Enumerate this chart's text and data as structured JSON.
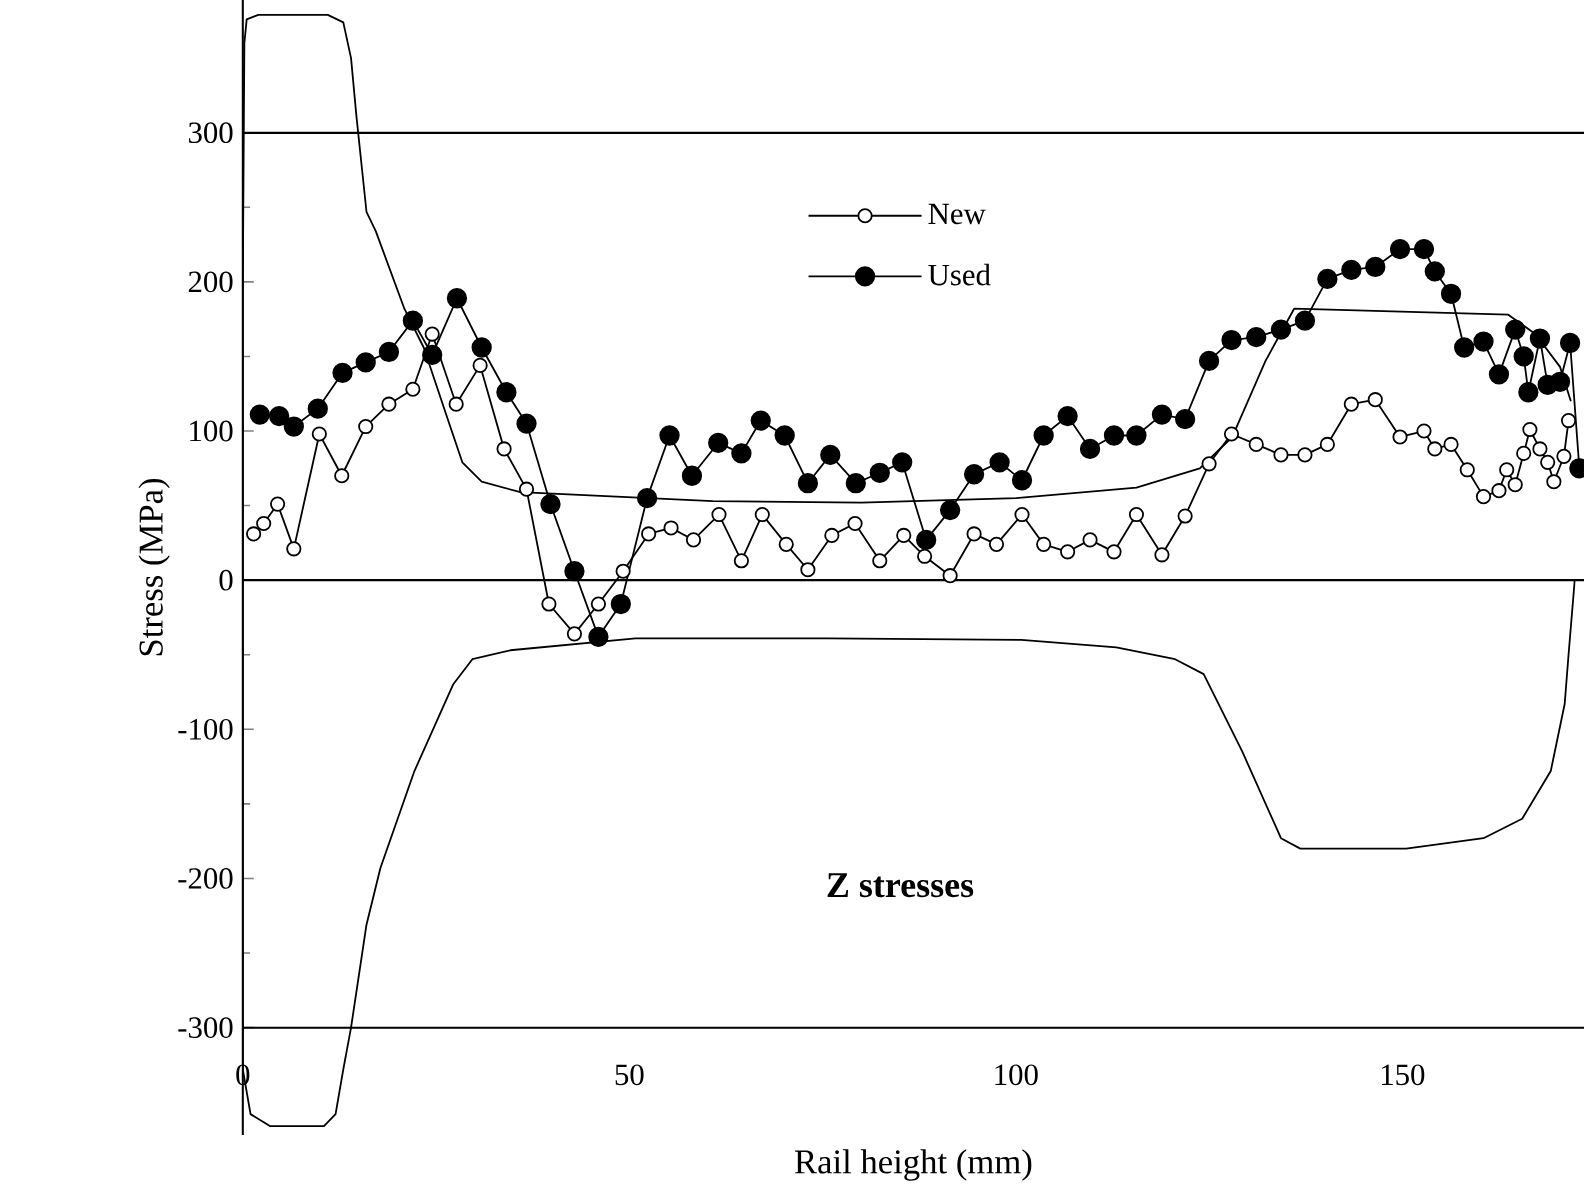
{
  "chart_data": {
    "type": "line",
    "xlabel": "Rail height (mm)",
    "ylabel": "Stress (MPa)",
    "annotations": [
      "Z stresses"
    ],
    "xlim": [
      0,
      173.5
    ],
    "ylim": [
      -372,
      389
    ],
    "xticks": [
      0,
      50,
      100,
      150
    ],
    "yticks": [
      -300,
      -200,
      -100,
      0,
      100,
      200,
      300
    ],
    "legend": "top",
    "marker": "circle",
    "ref_lines": [
      {
        "axis": "y",
        "value": 300,
        "color": "#000000"
      },
      {
        "axis": "y",
        "value": 0,
        "color": "#000000"
      },
      {
        "axis": "y",
        "value": -300,
        "color": "#000000"
      }
    ],
    "series": [
      {
        "name": "New",
        "color": "#ffffff",
        "x": [
          1.4,
          2.7,
          4.5,
          6.6,
          9.9,
          12.8,
          15.9,
          18.9,
          22,
          24.5,
          27.6,
          30.7,
          33.8,
          36.7,
          39.6,
          42.9,
          46,
          49.2,
          52.5,
          55.4,
          58.3,
          61.6,
          64.5,
          67.2,
          70.3,
          73.1,
          76.2,
          79.2,
          82.4,
          85.5,
          88.2,
          91.5,
          94.6,
          97.5,
          100.8,
          103.6,
          106.7,
          109.6,
          112.7,
          115.6,
          118.9,
          121.9,
          125,
          127.9,
          131.1,
          134.3,
          137.4,
          140.3,
          143.4,
          146.5,
          149.7,
          152.8,
          154.2,
          156.3,
          158.4,
          160.5,
          162.5,
          163.5,
          164.6,
          165.7,
          166.5,
          167.8,
          168.8,
          169.6,
          170.9,
          171.5
        ],
        "values": [
          31,
          38,
          51,
          21,
          98,
          70,
          103,
          118,
          128,
          165,
          118,
          144,
          88,
          61,
          -16,
          -36,
          -16,
          6,
          31,
          35,
          27,
          44,
          13,
          44,
          24,
          7,
          30,
          38,
          13,
          30,
          16,
          3,
          31,
          24,
          44,
          24,
          19,
          27,
          19,
          44,
          17,
          43,
          78,
          98,
          91,
          84,
          84,
          91,
          118,
          121,
          96,
          100,
          88,
          91,
          74,
          56,
          60,
          74,
          64,
          85,
          101,
          88,
          79,
          66,
          83,
          107
        ]
      },
      {
        "name": "Used",
        "color": "#000000",
        "x": [
          2.2,
          4.7,
          6.6,
          9.7,
          12.9,
          15.9,
          18.9,
          22,
          24.5,
          27.7,
          30.9,
          34.1,
          36.7,
          39.8,
          42.9,
          46,
          48.9,
          52.3,
          55.2,
          58.1,
          61.5,
          64.5,
          67,
          70.1,
          73.1,
          76,
          79.3,
          82.4,
          85.3,
          88.4,
          91.5,
          94.6,
          97.9,
          100.8,
          103.6,
          106.7,
          109.6,
          112.7,
          115.6,
          118.9,
          121.9,
          125,
          127.9,
          131.1,
          134.3,
          137.4,
          140.3,
          143.4,
          146.5,
          149.7,
          152.8,
          154.2,
          156.3,
          158,
          160.5,
          162.5,
          164.6,
          165.7,
          166.3,
          167.8,
          168.8,
          170.4,
          171.7,
          172.9
        ],
        "values": [
          111,
          110,
          103,
          115,
          139,
          146,
          153,
          174,
          151,
          189,
          156,
          126,
          105,
          51,
          6,
          -38,
          -16,
          55,
          97,
          70,
          92,
          85,
          107,
          97,
          65,
          84,
          65,
          72,
          79,
          27,
          47,
          71,
          79,
          67,
          97,
          110,
          88,
          97,
          97,
          111,
          108,
          147,
          161,
          163,
          168,
          174,
          202,
          208,
          210,
          222,
          222,
          207,
          192,
          156,
          160,
          138,
          168,
          150,
          126,
          162,
          131,
          133,
          159,
          75
        ]
      },
      {
        "type": "line",
        "color": "#000000",
        "marker": "none",
        "x": [
          171.8,
          170.4,
          167.2,
          163.7,
          136,
          132.3,
          128,
          123.8,
          115.6,
          100,
          80,
          60.8,
          35.9,
          30.9,
          28.4,
          26.7,
          23.4,
          20.9,
          17.2,
          16,
          14.7,
          14,
          13,
          11,
          2,
          0.5,
          0.2,
          0,
          0,
          1,
          3.5,
          10.5,
          12,
          13,
          14,
          16,
          17.8,
          22.2,
          27.2,
          29.7,
          34.6,
          50.8,
          75.7,
          100.7,
          113,
          120.6,
          124.3,
          129.3,
          134.3,
          136.8,
          150.5,
          160.5,
          165.5,
          169.2,
          171,
          171.5,
          172.3
        ],
        "values": [
          120,
          143,
          165,
          178,
          182,
          147,
          96,
          75,
          62,
          55,
          52,
          53,
          59,
          66,
          79,
          105,
          156,
          182,
          234,
          247,
          311,
          350,
          374,
          379,
          379,
          376,
          360,
          200,
          -328,
          -358,
          -366,
          -366,
          -358,
          -328,
          -300,
          -231,
          -193,
          -128,
          -70,
          -53,
          -47,
          -39,
          -39,
          -40,
          -45,
          -53,
          -63,
          -115,
          -173,
          -180,
          -180,
          -173,
          -160,
          -128,
          -83,
          -50,
          0
        ]
      }
    ]
  }
}
